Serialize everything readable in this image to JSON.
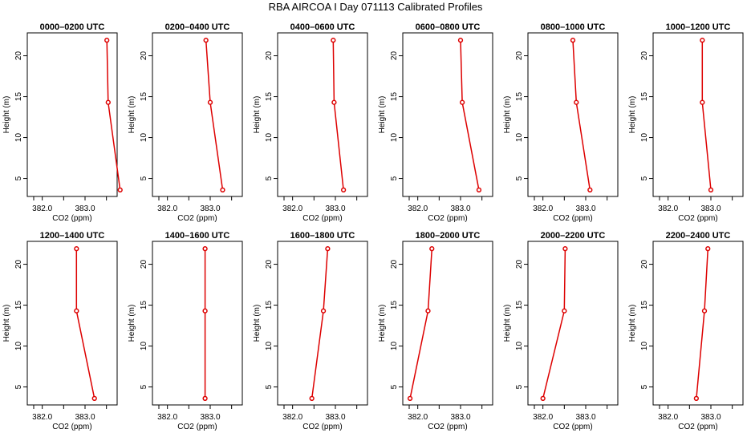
{
  "page": {
    "title": "RBA AIRCOA I  Day 071113  Calibrated Profiles"
  },
  "colors": {
    "profile": "#dd0000",
    "axis": "#000000",
    "background": "#ffffff"
  },
  "chart_data": [
    {
      "type": "line",
      "title": "0000–0200 UTC",
      "xlabel": "CO2 (ppm)",
      "ylabel": "Height (m)",
      "xlim": [
        381.65,
        383.75
      ],
      "ylim": [
        2.8,
        22.8
      ],
      "xticks": [
        382.0,
        383.0
      ],
      "yticks": [
        5,
        10,
        15,
        20
      ],
      "x": [
        383.51,
        383.54,
        383.82
      ],
      "y": [
        21.9,
        14.3,
        3.6
      ]
    },
    {
      "type": "line",
      "title": "0200–0400 UTC",
      "xlabel": "CO2 (ppm)",
      "ylabel": "Height (m)",
      "xlim": [
        381.65,
        383.75
      ],
      "ylim": [
        2.8,
        22.8
      ],
      "xticks": [
        382.0,
        383.0
      ],
      "yticks": [
        5,
        10,
        15,
        20
      ],
      "x": [
        382.9,
        383.0,
        383.29
      ],
      "y": [
        21.9,
        14.3,
        3.6
      ]
    },
    {
      "type": "line",
      "title": "0400–0600 UTC",
      "xlabel": "CO2 (ppm)",
      "ylabel": "Height (m)",
      "xlim": [
        381.65,
        383.75
      ],
      "ylim": [
        2.8,
        22.8
      ],
      "xticks": [
        382.0,
        383.0
      ],
      "yticks": [
        5,
        10,
        15,
        20
      ],
      "x": [
        382.95,
        382.97,
        383.19
      ],
      "y": [
        21.9,
        14.3,
        3.6
      ]
    },
    {
      "type": "line",
      "title": "0600–0800 UTC",
      "xlabel": "CO2 (ppm)",
      "ylabel": "Height (m)",
      "xlim": [
        381.65,
        383.75
      ],
      "ylim": [
        2.8,
        22.8
      ],
      "xticks": [
        382.0,
        383.0
      ],
      "yticks": [
        5,
        10,
        15,
        20
      ],
      "x": [
        383.0,
        383.04,
        383.43
      ],
      "y": [
        21.9,
        14.3,
        3.6
      ]
    },
    {
      "type": "line",
      "title": "0800–1000 UTC",
      "xlabel": "CO2 (ppm)",
      "ylabel": "Height (m)",
      "xlim": [
        381.65,
        383.75
      ],
      "ylim": [
        2.8,
        22.8
      ],
      "xticks": [
        382.0,
        383.0
      ],
      "yticks": [
        5,
        10,
        15,
        20
      ],
      "x": [
        382.7,
        382.78,
        383.1
      ],
      "y": [
        21.9,
        14.3,
        3.6
      ]
    },
    {
      "type": "line",
      "title": "1000–1200 UTC",
      "xlabel": "CO2 (ppm)",
      "ylabel": "Height (m)",
      "xlim": [
        381.65,
        383.75
      ],
      "ylim": [
        2.8,
        22.8
      ],
      "xticks": [
        382.0,
        383.0
      ],
      "yticks": [
        5,
        10,
        15,
        20
      ],
      "x": [
        382.8,
        382.8,
        383.0
      ],
      "y": [
        21.9,
        14.3,
        3.6
      ]
    },
    {
      "type": "line",
      "title": "1200–1400 UTC",
      "xlabel": "CO2 (ppm)",
      "ylabel": "Height (m)",
      "xlim": [
        381.65,
        383.75
      ],
      "ylim": [
        2.8,
        22.8
      ],
      "xticks": [
        382.0,
        383.0
      ],
      "yticks": [
        5,
        10,
        15,
        20
      ],
      "x": [
        382.8,
        382.8,
        383.22
      ],
      "y": [
        21.9,
        14.3,
        3.6
      ]
    },
    {
      "type": "line",
      "title": "1400–1600 UTC",
      "xlabel": "CO2 (ppm)",
      "ylabel": "Height (m)",
      "xlim": [
        381.65,
        383.75
      ],
      "ylim": [
        2.8,
        22.8
      ],
      "xticks": [
        382.0,
        383.0
      ],
      "yticks": [
        5,
        10,
        15,
        20
      ],
      "x": [
        382.88,
        382.88,
        382.88
      ],
      "y": [
        21.9,
        14.3,
        3.6
      ]
    },
    {
      "type": "line",
      "title": "1600–1800 UTC",
      "xlabel": "CO2 (ppm)",
      "ylabel": "Height (m)",
      "xlim": [
        381.65,
        383.75
      ],
      "ylim": [
        2.8,
        22.8
      ],
      "xticks": [
        382.0,
        383.0
      ],
      "yticks": [
        5,
        10,
        15,
        20
      ],
      "x": [
        382.82,
        382.72,
        382.45
      ],
      "y": [
        21.9,
        14.3,
        3.6
      ]
    },
    {
      "type": "line",
      "title": "1800–2000 UTC",
      "xlabel": "CO2 (ppm)",
      "ylabel": "Height (m)",
      "xlim": [
        381.65,
        383.75
      ],
      "ylim": [
        2.8,
        22.8
      ],
      "xticks": [
        382.0,
        383.0
      ],
      "yticks": [
        5,
        10,
        15,
        20
      ],
      "x": [
        382.33,
        382.24,
        381.82
      ],
      "y": [
        21.9,
        14.3,
        3.6
      ]
    },
    {
      "type": "line",
      "title": "2000–2200 UTC",
      "xlabel": "CO2 (ppm)",
      "ylabel": "Height (m)",
      "xlim": [
        381.65,
        383.75
      ],
      "ylim": [
        2.8,
        22.8
      ],
      "xticks": [
        382.0,
        383.0
      ],
      "yticks": [
        5,
        10,
        15,
        20
      ],
      "x": [
        382.52,
        382.5,
        382.0
      ],
      "y": [
        21.9,
        14.3,
        3.6
      ]
    },
    {
      "type": "line",
      "title": "2200–2400 UTC",
      "xlabel": "CO2 (ppm)",
      "ylabel": "Height (m)",
      "xlim": [
        381.65,
        383.75
      ],
      "ylim": [
        2.8,
        22.8
      ],
      "xticks": [
        382.0,
        383.0
      ],
      "yticks": [
        5,
        10,
        15,
        20
      ],
      "x": [
        382.93,
        382.85,
        382.66
      ],
      "y": [
        21.9,
        14.3,
        3.6
      ]
    }
  ]
}
